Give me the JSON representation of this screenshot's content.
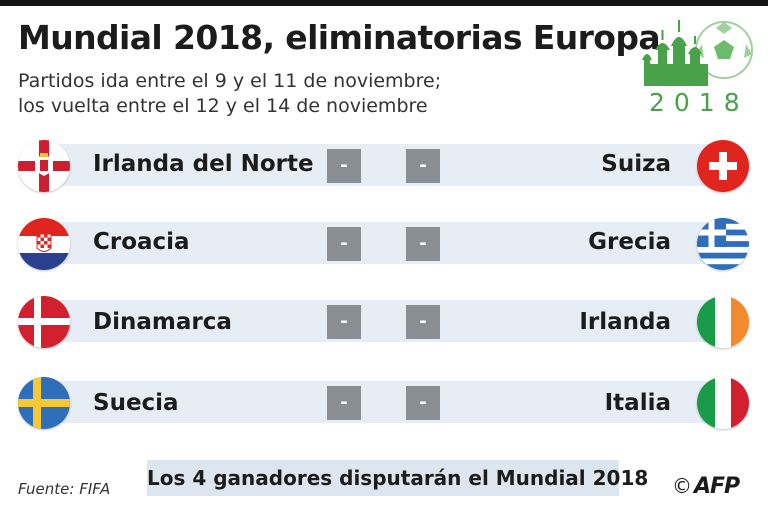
{
  "title": "Mundial 2018, eliminatorias Europa",
  "subtitle_line1": "Partidos ida entre el 9 y el 11 de noviembre;",
  "subtitle_line2": "los vuelta entre el 12 y el 14 de noviembre",
  "logo": {
    "year": "2018",
    "icon": "world-cup-russia-logo",
    "color": "#49a14a"
  },
  "matches": [
    {
      "home": "Irlanda del Norte",
      "away": "Suiza",
      "home_score": "-",
      "away_score": "-",
      "home_flag": "northern-ireland-flag",
      "away_flag": "switzerland-flag"
    },
    {
      "home": "Croacia",
      "away": "Grecia",
      "home_score": "-",
      "away_score": "-",
      "home_flag": "croatia-flag",
      "away_flag": "greece-flag"
    },
    {
      "home": "Dinamarca",
      "away": "Irlanda",
      "home_score": "-",
      "away_score": "-",
      "home_flag": "denmark-flag",
      "away_flag": "ireland-flag"
    },
    {
      "home": "Suecia",
      "away": "Italia",
      "home_score": "-",
      "away_score": "-",
      "home_flag": "sweden-flag",
      "away_flag": "italy-flag"
    }
  ],
  "footer": {
    "note": "Los 4 ganadores disputarán el Mundial 2018",
    "source": "Fuente: FIFA",
    "copyright": "©",
    "agency": "AFP"
  },
  "colors": {
    "band": "#e6edf4",
    "score_box": "#8a8f95",
    "footer_box": "#dde6ef"
  }
}
